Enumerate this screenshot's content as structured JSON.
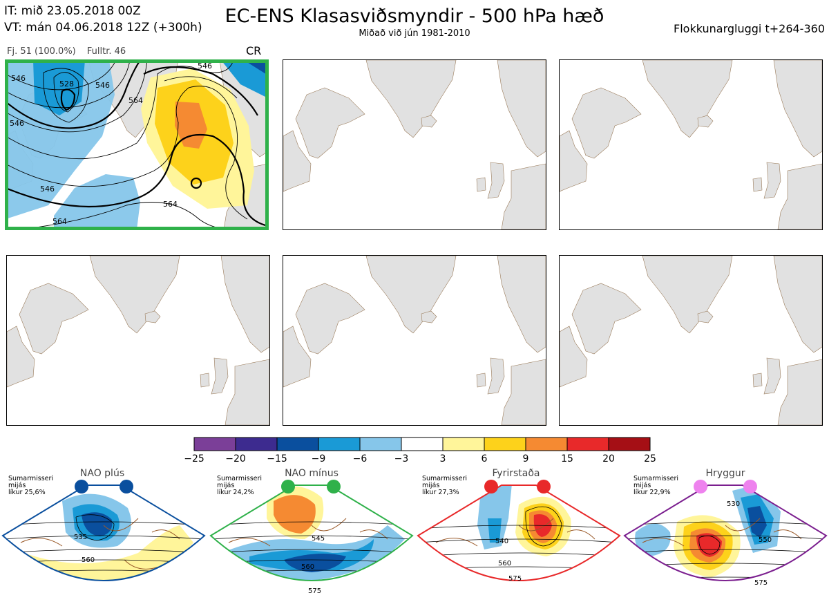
{
  "header": {
    "it_line": "IT: mið 23.05.2018 00Z",
    "vt_line": "VT: mán 04.06.2018 12Z  (+300h)",
    "title": "EC-ENS Klasasviðsmyndir - 500 hPa hæð",
    "subtitle": "Miðað við jún 1981-2010",
    "window": "Flokkunargluggi t+264-360"
  },
  "panel1": {
    "members": "Fj. 51 (100.0%)",
    "representative": "Fulltr. 46",
    "regime_code": "CR",
    "contour_labels": [
      "546",
      "528",
      "546",
      "564",
      "546",
      "546",
      "564",
      "564",
      "546"
    ],
    "highlight_color": "#2fb14a"
  },
  "colorbar": {
    "colors": [
      "#7b3f98",
      "#3d2b8f",
      "#0a4f9e",
      "#1a9ad6",
      "#86c6ea",
      "#ffffff",
      "#fff59a",
      "#fdd21b",
      "#f58a32",
      "#e8292a",
      "#a50f15"
    ],
    "ticks": [
      "−25",
      "−20",
      "−15",
      "−9",
      "−6",
      "−3",
      "3",
      "6",
      "9",
      "15",
      "20",
      "25"
    ]
  },
  "regimes": [
    {
      "name": "NAO plús",
      "note": [
        "Sumarmisseri",
        "mijás",
        "líkur 25,6%"
      ],
      "color": "#0a4f9e",
      "labels": [
        "535",
        "560"
      ]
    },
    {
      "name": "NAO mínus",
      "note": [
        "Sumarmisseri",
        "mijás",
        "líkur 24,2%"
      ],
      "color": "#2fb14a",
      "labels": [
        "545",
        "560",
        "575"
      ]
    },
    {
      "name": "Fyrirstaða",
      "note": [
        "Sumarmisseri",
        "mijás",
        "líkur 27,3%"
      ],
      "color": "#e8292a",
      "labels": [
        "540",
        "560",
        "575"
      ]
    },
    {
      "name": "Hryggur",
      "note": [
        "Sumarmisseri",
        "mijás",
        "líkur 22,9%"
      ],
      "color": "#7b1f8f",
      "marker_color": "#ee82ee",
      "labels": [
        "530",
        "550",
        "575"
      ]
    }
  ]
}
